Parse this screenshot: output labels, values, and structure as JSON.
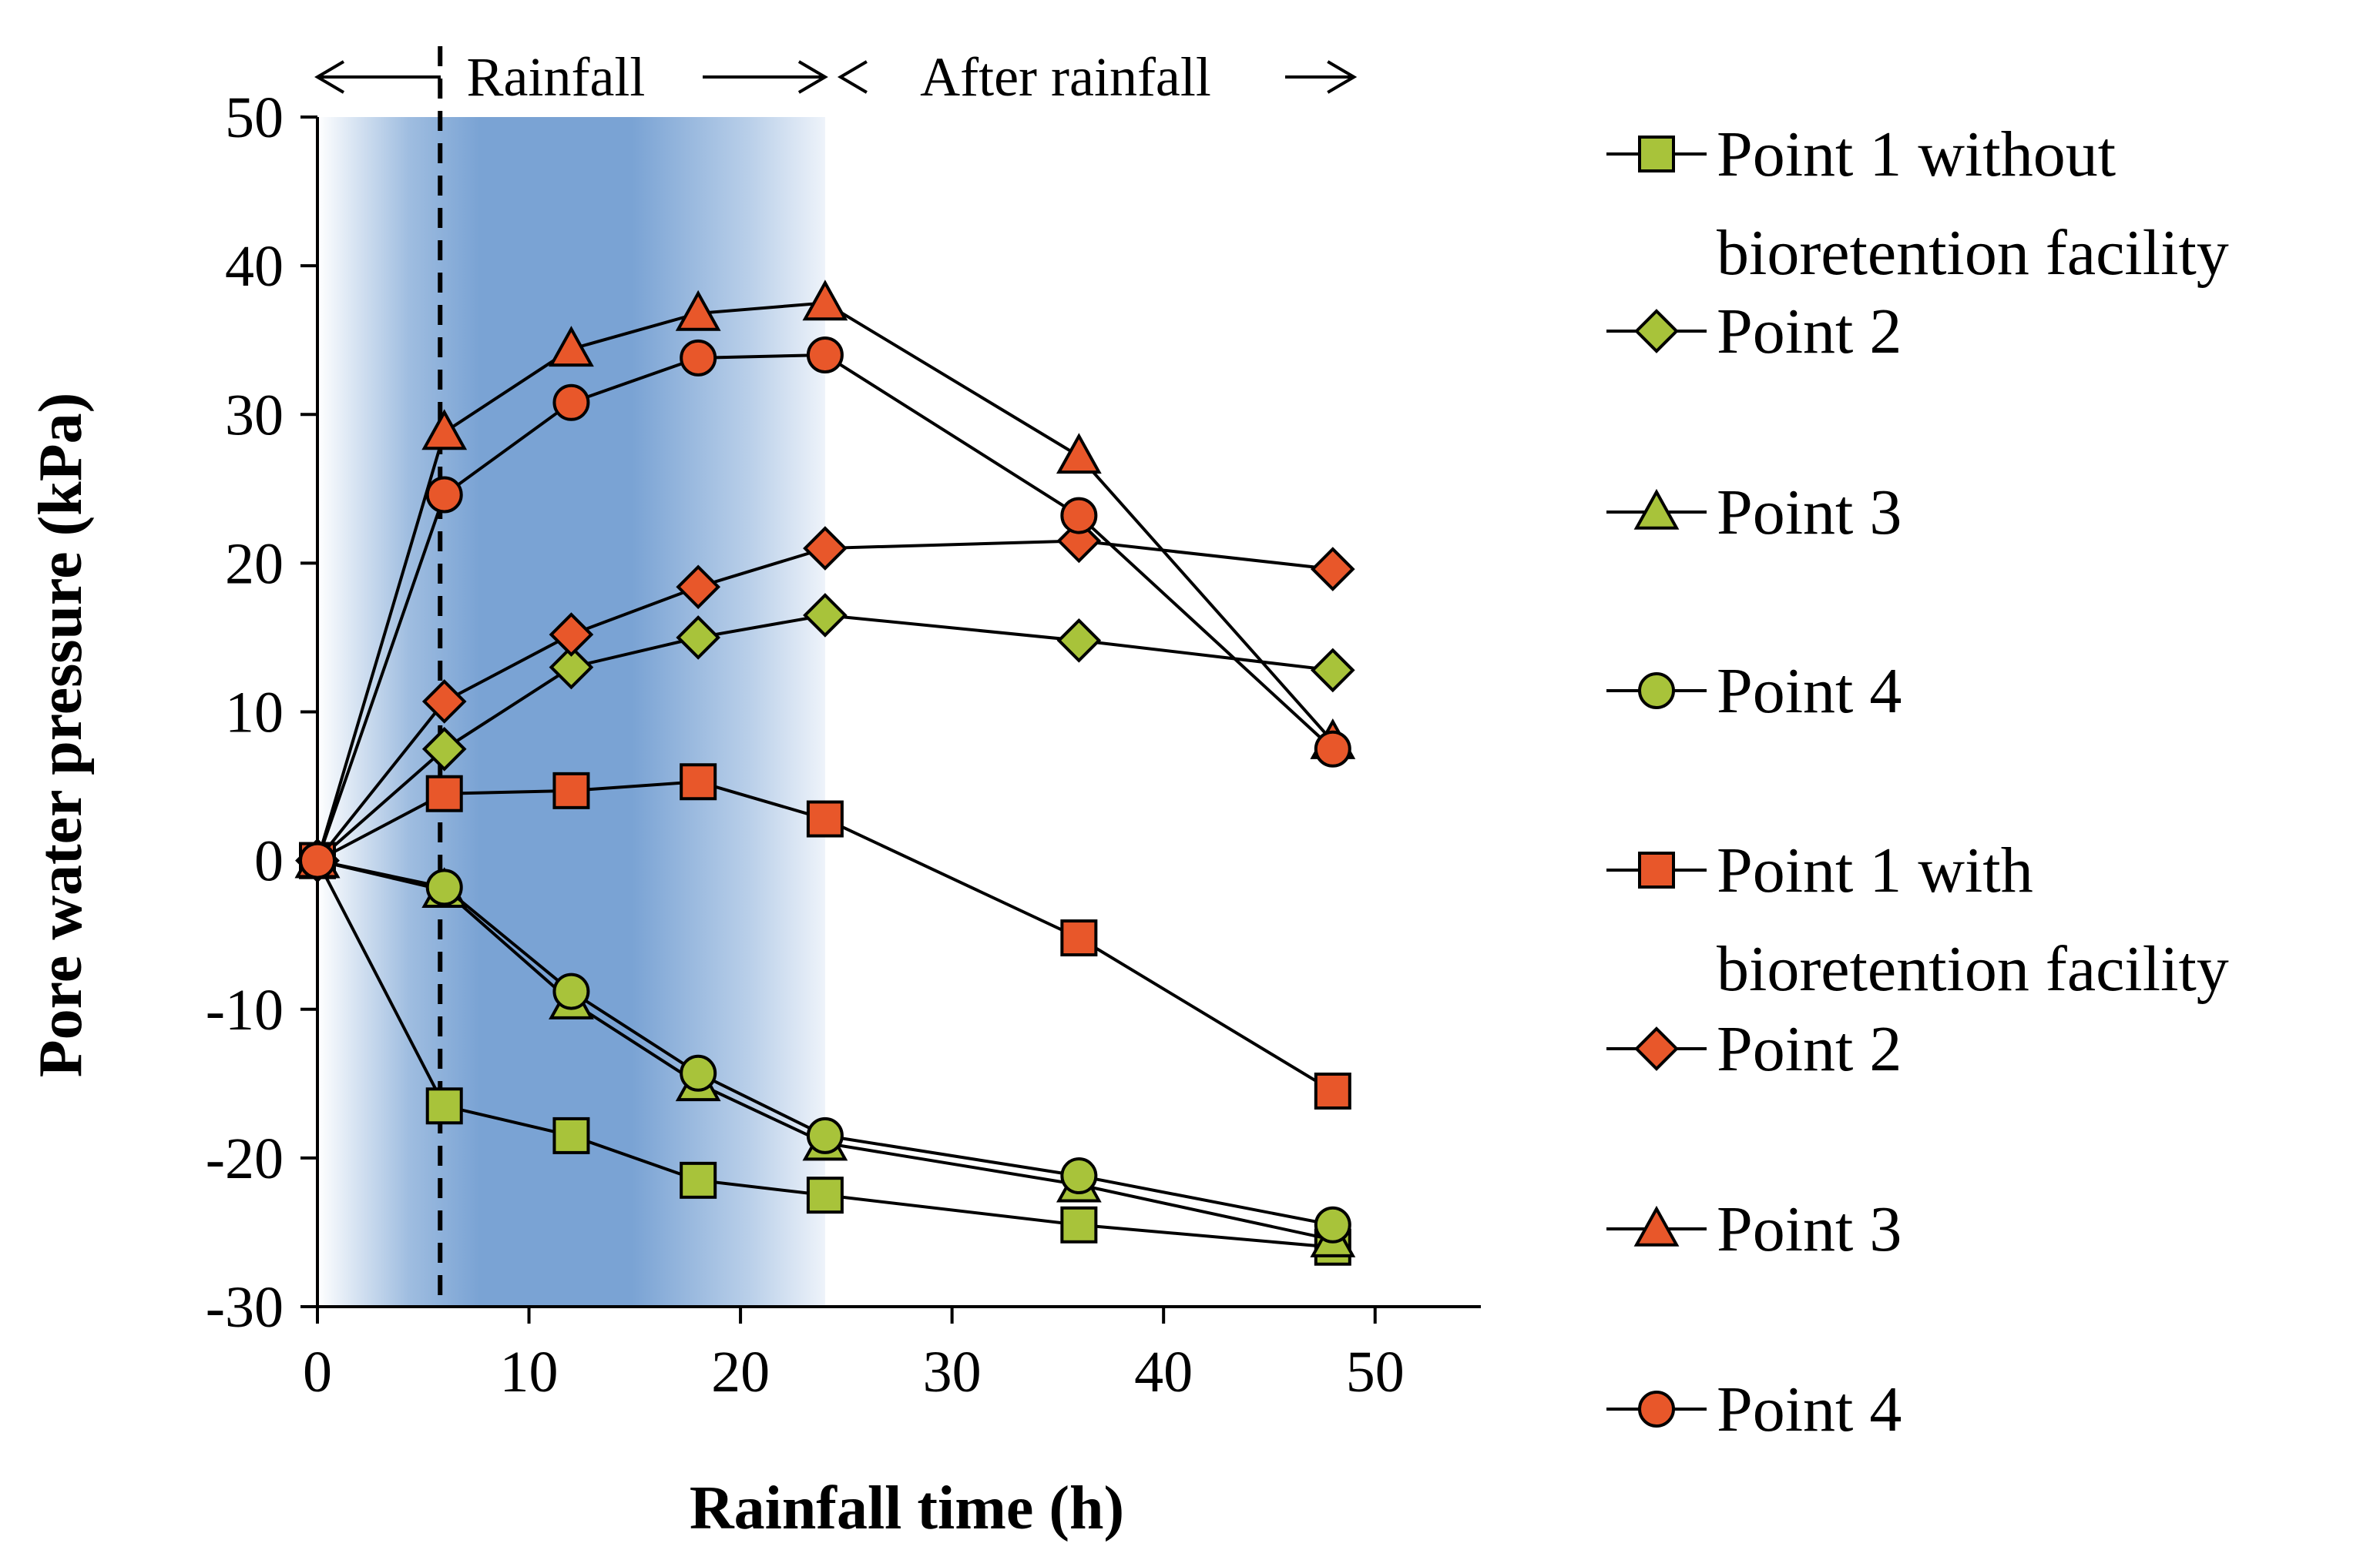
{
  "chart_data": {
    "type": "line",
    "xlabel": "Rainfall time (h)",
    "ylabel": "Pore water pressure (kPa)",
    "xlim": [
      0,
      55
    ],
    "ylim": [
      -30,
      50
    ],
    "xticks": [
      "0",
      "10",
      "20",
      "30",
      "40",
      "50"
    ],
    "yticks": [
      "50",
      "40",
      "30",
      "20",
      "10",
      "0",
      "-10",
      "-20",
      "-30"
    ],
    "phases": [
      {
        "label": "Rainfall",
        "from": 0,
        "to": 24
      },
      {
        "label": "After rainfall",
        "from": 24,
        "to": 49
      }
    ],
    "dashed_line_x": 5.8,
    "shaded_interval": [
      0,
      24
    ],
    "colors": {
      "green_fill": "#a8c33a",
      "orange_fill": "#e8572a",
      "line": "#000000",
      "shade_dark": "#6f9bd0",
      "shade_light": "#ffffff"
    },
    "series": [
      {
        "name": "Point 1 without bioretention facility",
        "marker": "square",
        "color": "#a8c33a",
        "x": [
          0,
          6,
          12,
          18,
          24,
          36,
          48
        ],
        "values": [
          0,
          -16.5,
          -18.5,
          -21.5,
          -22.5,
          -24.5,
          -26
        ]
      },
      {
        "name": "Point 2",
        "marker": "diamond",
        "color": "#a8c33a",
        "x": [
          0,
          6,
          12,
          18,
          24,
          36,
          48
        ],
        "values": [
          0,
          7.5,
          13,
          15,
          16.5,
          14.8,
          12.8
        ]
      },
      {
        "name": "Point 3",
        "marker": "triangle",
        "color": "#a8c33a",
        "x": [
          0,
          6,
          12,
          18,
          24,
          36,
          48
        ],
        "values": [
          0,
          -2,
          -9.5,
          -15,
          -19,
          -21.8,
          -25.5
        ]
      },
      {
        "name": "Point 4",
        "marker": "circle",
        "color": "#a8c33a",
        "x": [
          0,
          6,
          12,
          18,
          24,
          36,
          48
        ],
        "values": [
          0,
          -1.8,
          -8.8,
          -14.3,
          -18.5,
          -21.2,
          -24.5
        ]
      },
      {
        "name": "Point 1 with bioretention facility",
        "marker": "square",
        "color": "#e8572a",
        "x": [
          0,
          6,
          12,
          18,
          24,
          36,
          48
        ],
        "values": [
          0,
          4.5,
          4.7,
          5.3,
          2.8,
          -5.2,
          -15.5
        ]
      },
      {
        "name": "Point 2",
        "marker": "diamond",
        "color": "#e8572a",
        "x": [
          0,
          6,
          12,
          18,
          24,
          36,
          48
        ],
        "values": [
          0,
          10.7,
          15.2,
          18.4,
          21,
          21.5,
          19.6
        ]
      },
      {
        "name": "Point 3",
        "marker": "triangle",
        "color": "#e8572a",
        "x": [
          0,
          6,
          12,
          18,
          24,
          36,
          48
        ],
        "values": [
          0,
          28.8,
          34.4,
          36.8,
          37.5,
          27.2,
          8
        ]
      },
      {
        "name": "Point 4",
        "marker": "circle",
        "color": "#e8572a",
        "x": [
          0,
          6,
          12,
          18,
          24,
          36,
          48
        ],
        "values": [
          0,
          24.6,
          30.8,
          33.8,
          34,
          23.2,
          7.5
        ]
      }
    ],
    "legend": [
      {
        "lines": [
          "Point 1 without",
          "bioretention facility"
        ],
        "marker": "square",
        "color": "#a8c33a"
      },
      {
        "lines": [
          "Point 2"
        ],
        "marker": "diamond",
        "color": "#a8c33a"
      },
      {
        "lines": [
          "Point 3"
        ],
        "marker": "triangle",
        "color": "#a8c33a"
      },
      {
        "lines": [
          "Point 4"
        ],
        "marker": "circle",
        "color": "#a8c33a"
      },
      {
        "lines": [
          "Point 1 with",
          "bioretention facility"
        ],
        "marker": "square",
        "color": "#e8572a"
      },
      {
        "lines": [
          "Point 2"
        ],
        "marker": "diamond",
        "color": "#e8572a"
      },
      {
        "lines": [
          "Point 3"
        ],
        "marker": "triangle",
        "color": "#e8572a"
      },
      {
        "lines": [
          "Point 4"
        ],
        "marker": "circle",
        "color": "#e8572a"
      }
    ]
  }
}
